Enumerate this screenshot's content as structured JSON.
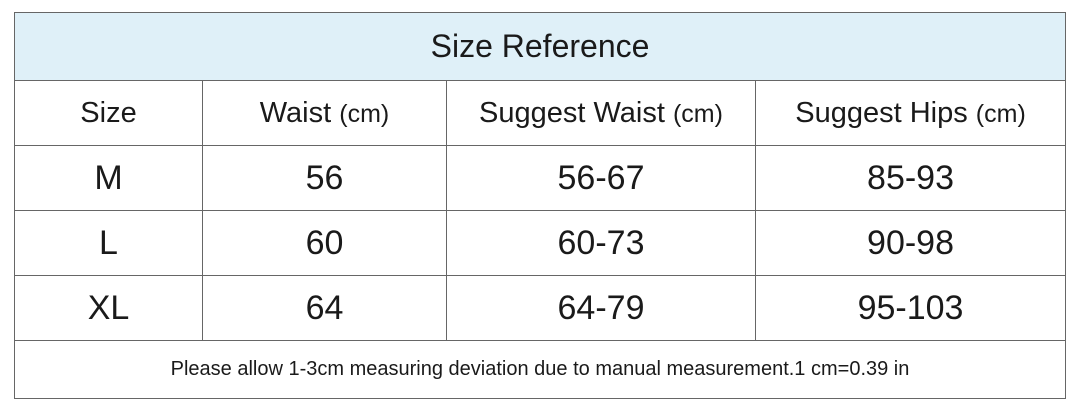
{
  "title": "Size Reference",
  "table": {
    "header": [
      {
        "label": "Size"
      },
      {
        "label": "Waist",
        "unit": "(cm)"
      },
      {
        "label": "Suggest Waist",
        "unit": "(cm)"
      },
      {
        "label": "Suggest Hips",
        "unit": "(cm)"
      }
    ],
    "rows": [
      [
        "M",
        56,
        "56-67",
        "85-93"
      ],
      [
        "L",
        60,
        "60-73",
        "90-98"
      ],
      [
        "XL",
        64,
        "64-79",
        "95-103"
      ]
    ]
  },
  "note": "Please allow 1-3cm measuring deviation due to manual measurement.1 cm=0.39 in"
}
